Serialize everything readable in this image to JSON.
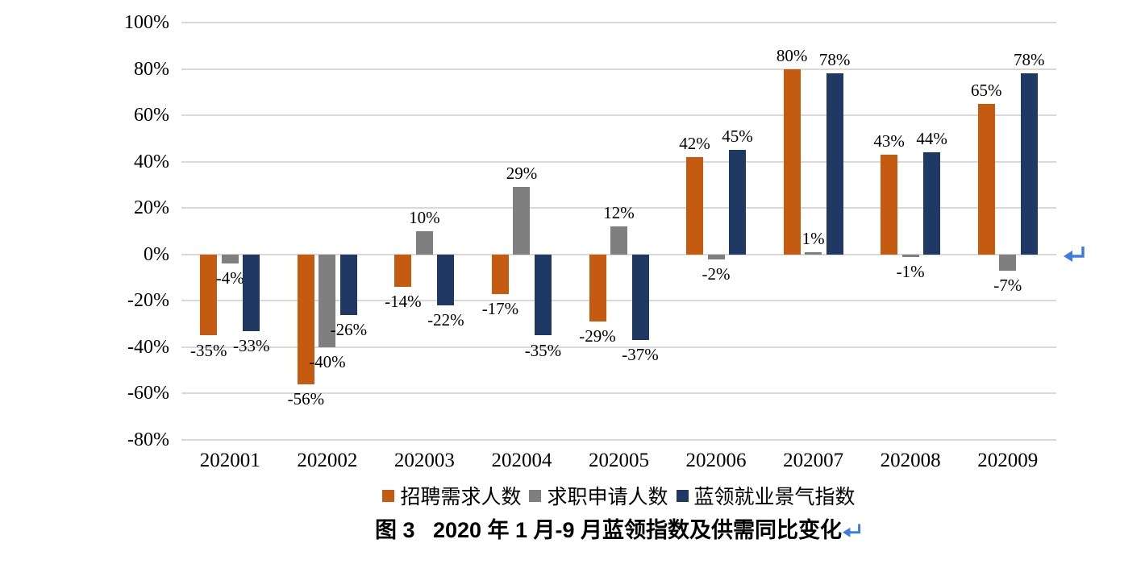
{
  "figure": {
    "caption": "图 3   2020 年 1 月-9 月蓝领指数及供需同比变化"
  },
  "chart_data": {
    "type": "bar",
    "title": "",
    "categories": [
      "202001",
      "202002",
      "202003",
      "202004",
      "202005",
      "202006",
      "202007",
      "202008",
      "202009"
    ],
    "series": [
      {
        "name": "招聘需求人数",
        "color": "#C55A11",
        "values": [
          -35,
          -56,
          -14,
          -17,
          -29,
          42,
          80,
          43,
          65
        ]
      },
      {
        "name": "求职申请人数",
        "color": "#7F7F7F",
        "values": [
          -4,
          -40,
          10,
          29,
          12,
          -2,
          1,
          -1,
          -7
        ]
      },
      {
        "name": "蓝领就业景气指数",
        "color": "#203864",
        "values": [
          -33,
          -26,
          -22,
          -35,
          -37,
          45,
          78,
          44,
          78
        ]
      }
    ],
    "y_axis": {
      "min": -80,
      "max": 100,
      "step": 20,
      "tick_suffix": "%",
      "ticks": [
        "100%",
        "80%",
        "60%",
        "40%",
        "20%",
        "0%",
        "-20%",
        "-40%",
        "-60%",
        "-80%"
      ]
    },
    "data_label_suffix": "%",
    "grid": true,
    "legend_position": "bottom",
    "xlabel": "",
    "ylabel": ""
  },
  "colors": {
    "gridline": "#D9D9D9",
    "paragraph_mark": "#3E7BE2"
  }
}
